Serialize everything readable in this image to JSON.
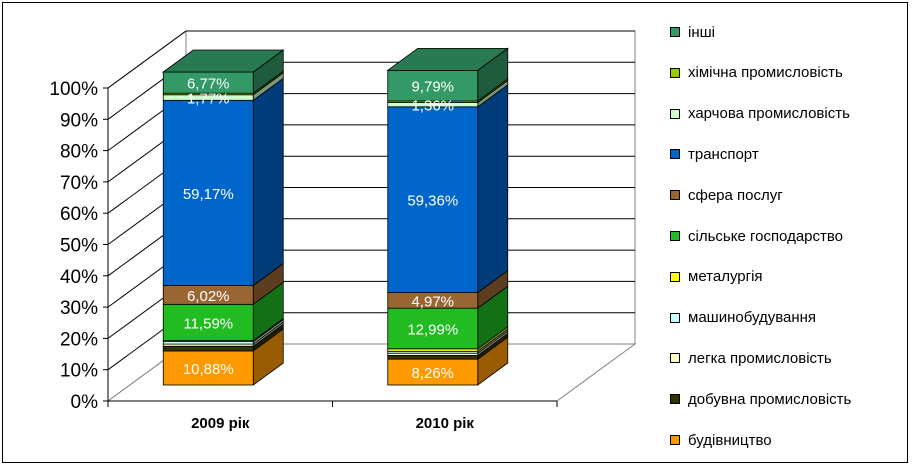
{
  "chart_data": {
    "type": "bar",
    "stacked": true,
    "percent": true,
    "three_d": true,
    "categories": [
      "2009 рік",
      "2010 рік"
    ],
    "y_ticks": [
      "0%",
      "10%",
      "20%",
      "30%",
      "40%",
      "50%",
      "60%",
      "70%",
      "80%",
      "90%",
      "100%"
    ],
    "ylim": [
      0,
      100
    ],
    "grid": true,
    "legend_position": "right",
    "series": [
      {
        "name": "будівництво",
        "color": "#ff9900",
        "values": [
          10.88,
          8.26
        ],
        "labels": [
          "10,88%",
          "8,26%"
        ]
      },
      {
        "name": "добувна промисловість",
        "color": "#333300",
        "values": [
          1.5,
          1.2
        ],
        "labels": [
          "",
          ""
        ]
      },
      {
        "name": "легка промисловість",
        "color": "#ffffcc",
        "values": [
          0.7,
          0.7
        ],
        "labels": [
          "",
          ""
        ]
      },
      {
        "name": "машинобудування",
        "color": "#ccffff",
        "values": [
          0.8,
          0.6
        ],
        "labels": [
          "",
          ""
        ]
      },
      {
        "name": "металургія",
        "color": "#ffff00",
        "values": [
          0.3,
          0.8
        ],
        "labels": [
          "",
          ""
        ]
      },
      {
        "name": "сільське господарство",
        "color": "#22bb22",
        "values": [
          11.59,
          12.99
        ],
        "labels": [
          "11,59%",
          "12,99%"
        ]
      },
      {
        "name": "сфера послуг",
        "color": "#996633",
        "values": [
          6.02,
          4.97
        ],
        "labels": [
          "6,02%",
          "4,97%"
        ]
      },
      {
        "name": "транспорт",
        "color": "#0066cc",
        "values": [
          59.17,
          59.36
        ],
        "labels": [
          "59,17%",
          "59,36%"
        ]
      },
      {
        "name": "харчова промисловість",
        "color": "#ccffcc",
        "values": [
          1.77,
          1.36
        ],
        "labels": [
          "1,77%",
          "1,36%"
        ]
      },
      {
        "name": "хімічна промисловість",
        "color": "#99cc00",
        "values": [
          0.5,
          0.5
        ],
        "labels": [
          "",
          ""
        ]
      },
      {
        "name": "інші",
        "color": "#339966",
        "values": [
          6.77,
          9.79
        ],
        "labels": [
          "6,77%",
          "9,79%"
        ]
      }
    ]
  }
}
